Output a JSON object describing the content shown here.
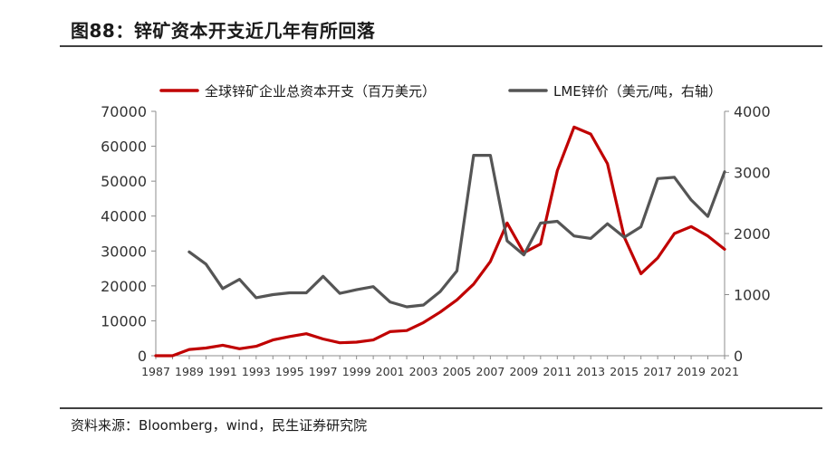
{
  "header": {
    "title": "图88：锌矿资本开支近几年有所回落"
  },
  "footer": {
    "source": "资料来源：Bloomberg，wind，民生证券研究院"
  },
  "chart_data": {
    "type": "line",
    "title": "图88：锌矿资本开支近几年有所回落",
    "x_ticks": [
      "1987",
      "1989",
      "1991",
      "1993",
      "1995",
      "1997",
      "1999",
      "2001",
      "2003",
      "2005",
      "2007",
      "2009",
      "2011",
      "2013",
      "2015",
      "2017",
      "2019",
      "2021"
    ],
    "y_left": {
      "range": [
        0,
        70000
      ],
      "ticks": [
        "0",
        "10000",
        "20000",
        "30000",
        "40000",
        "50000",
        "60000",
        "70000"
      ]
    },
    "y_right": {
      "range": [
        0,
        4000
      ],
      "ticks": [
        "0",
        "1000",
        "2000",
        "3000",
        "4000"
      ]
    },
    "legend_position": "top",
    "grid": false,
    "series": [
      {
        "name": "全球锌矿企业总资本开支（百万美元）",
        "axis": "left",
        "color": "#c00000",
        "x": [
          1987,
          1988,
          1989,
          1990,
          1991,
          1992,
          1993,
          1994,
          1995,
          1996,
          1997,
          1998,
          1999,
          2000,
          2001,
          2002,
          2003,
          2004,
          2005,
          2006,
          2007,
          2008,
          2009,
          2010,
          2011,
          2012,
          2013,
          2014,
          2015,
          2016,
          2017,
          2018,
          2019,
          2020,
          2021
        ],
        "values": [
          0,
          0,
          1800,
          2200,
          3000,
          2000,
          2700,
          4500,
          5500,
          6300,
          4800,
          3700,
          3900,
          4500,
          6900,
          7200,
          9500,
          12500,
          16000,
          20500,
          27000,
          38000,
          29500,
          32000,
          53000,
          65500,
          63500,
          55000,
          34000,
          23500,
          28000,
          35000,
          37000,
          34300,
          30500
        ]
      },
      {
        "name": "LME锌价（美元/吨，右轴）",
        "axis": "right",
        "color": "#555555",
        "x": [
          1989,
          1990,
          1991,
          1992,
          1993,
          1994,
          1995,
          1996,
          1997,
          1998,
          1999,
          2000,
          2001,
          2002,
          2003,
          2004,
          2005,
          2006,
          2007,
          2008,
          2009,
          2010,
          2011,
          2012,
          2013,
          2014,
          2015,
          2016,
          2017,
          2018,
          2019,
          2020,
          2021
        ],
        "values": [
          1700,
          1500,
          1100,
          1250,
          950,
          1000,
          1030,
          1030,
          1300,
          1020,
          1080,
          1130,
          880,
          800,
          830,
          1050,
          1390,
          3280,
          3280,
          1880,
          1650,
          2170,
          2200,
          1960,
          1920,
          2160,
          1940,
          2110,
          2900,
          2920,
          2550,
          2280,
          3010
        ]
      }
    ]
  }
}
